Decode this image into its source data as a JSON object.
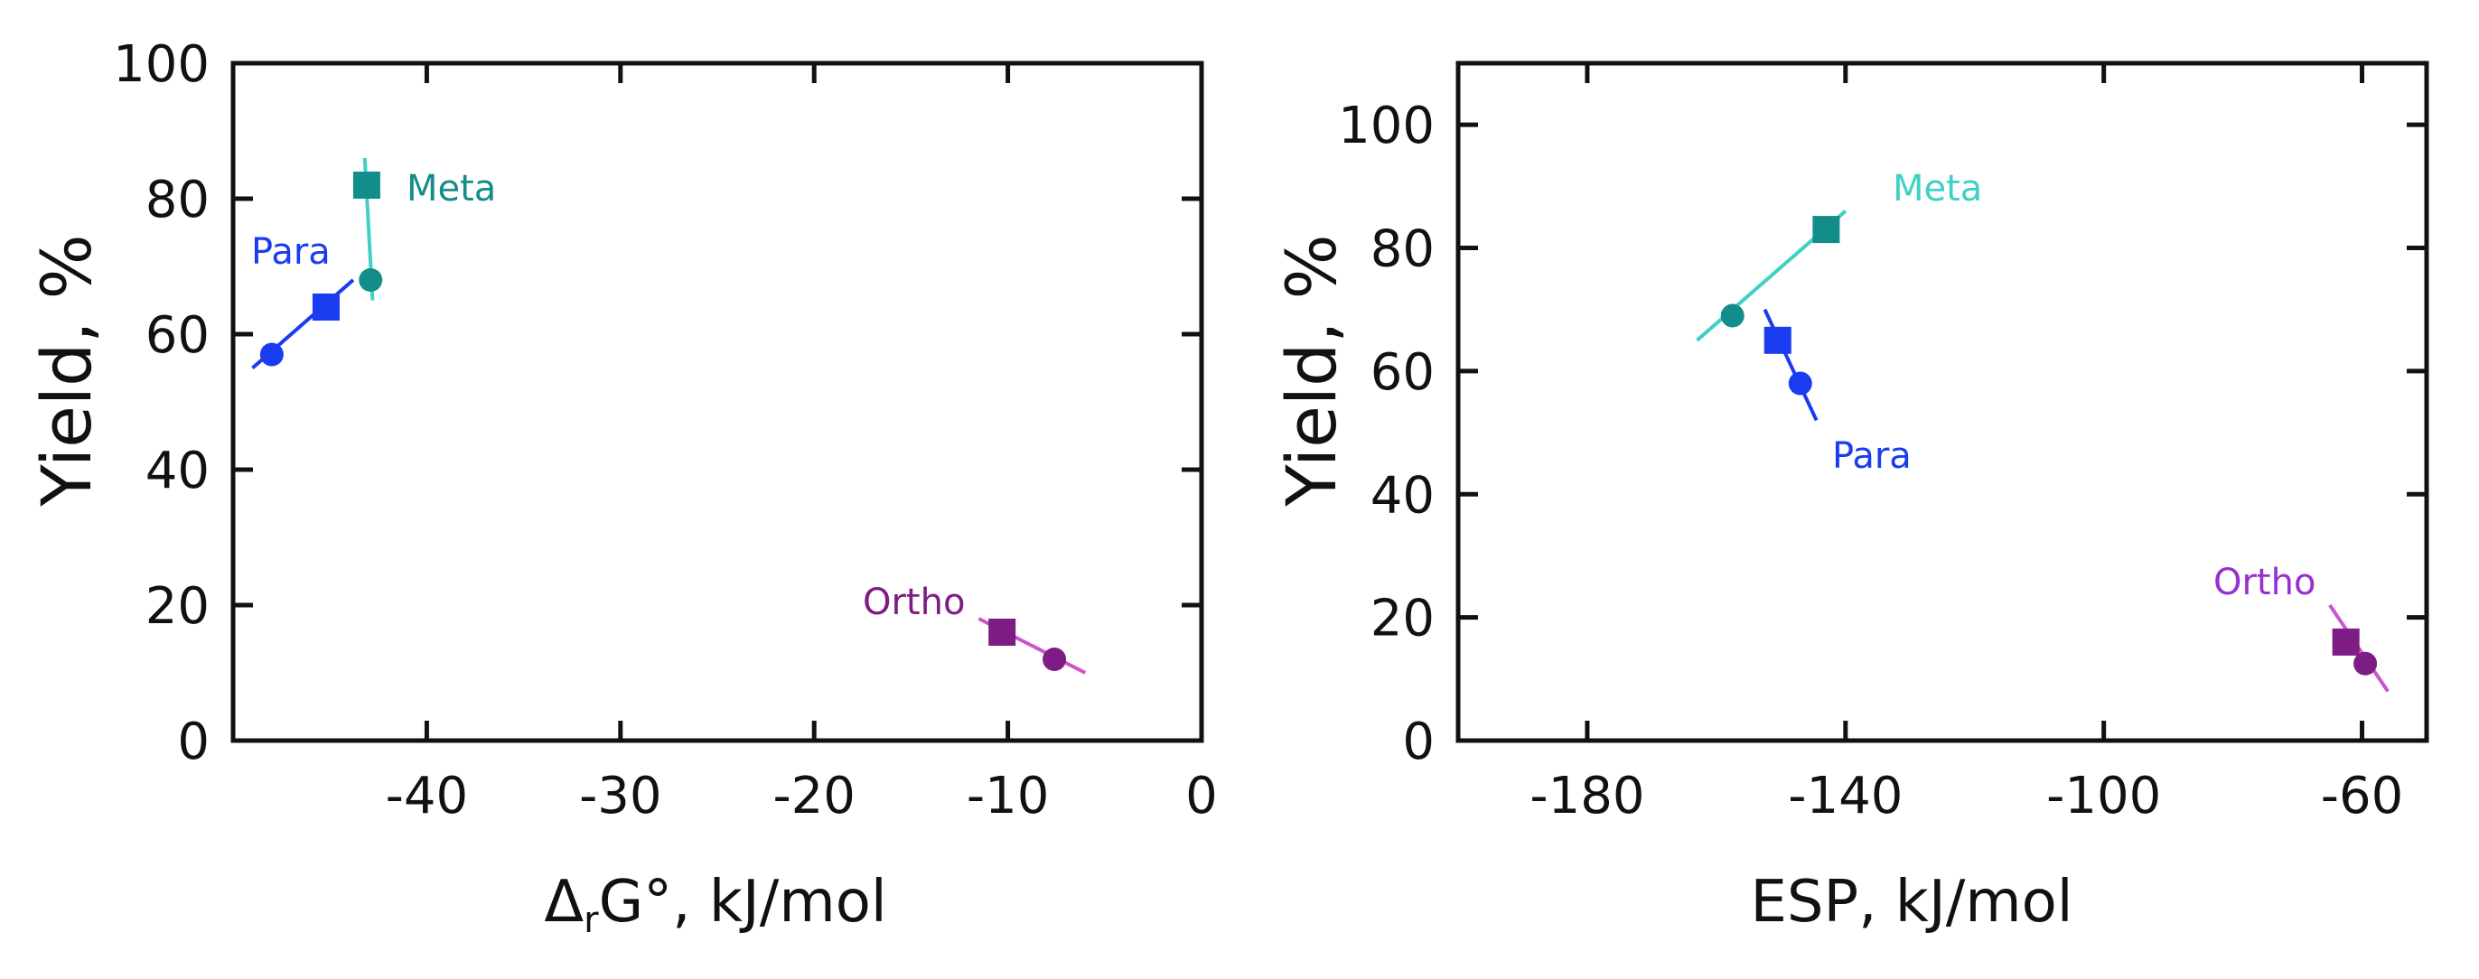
{
  "chart_data": [
    {
      "type": "scatter",
      "xlabel": "ΔrG°, kJ/mol",
      "xlabel_main": "Δ",
      "xlabel_sub": "r",
      "xlabel_rest": "G°, kJ/mol",
      "ylabel": "Yield, %",
      "xlim": [
        -50,
        0
      ],
      "ylim": [
        0,
        100
      ],
      "xticks": [
        -40,
        -30,
        -20,
        -10,
        0
      ],
      "xtick_labels": [
        "-40",
        "-30",
        "-20",
        "-10",
        "0"
      ],
      "yticks": [
        0,
        20,
        40,
        60,
        80,
        100
      ],
      "ytick_labels": [
        "0",
        "20",
        "40",
        "60",
        "80",
        "100"
      ],
      "series": [
        {
          "name": "Para",
          "color": "#1a3cf0",
          "points": [
            {
              "x": -48,
              "y": 57,
              "marker": "circle"
            },
            {
              "x": -45.2,
              "y": 64,
              "marker": "square"
            }
          ],
          "fit_line": [
            [
              -49,
              55
            ],
            [
              -43.8,
              68
            ]
          ]
        },
        {
          "name": "Meta",
          "color": "#138d89",
          "line_color": "#3fd0c4",
          "points": [
            {
              "x": -43.1,
              "y": 82,
              "marker": "square"
            },
            {
              "x": -42.9,
              "y": 68,
              "marker": "circle"
            }
          ],
          "fit_line": [
            [
              -43.2,
              86
            ],
            [
              -42.8,
              65
            ]
          ]
        },
        {
          "name": "Ortho",
          "color": "#7d1c84",
          "line_color": "#cc55cc",
          "points": [
            {
              "x": -10.3,
              "y": 16,
              "marker": "square"
            },
            {
              "x": -7.6,
              "y": 12,
              "marker": "circle"
            }
          ],
          "fit_line": [
            [
              -11.5,
              18
            ],
            [
              -6,
              10
            ]
          ]
        }
      ]
    },
    {
      "type": "scatter",
      "xlabel": "ESP, kJ/mol",
      "ylabel": "Yield, %",
      "xlim": [
        -200,
        -50
      ],
      "ylim": [
        0,
        110
      ],
      "xticks": [
        -180,
        -140,
        -100,
        -60
      ],
      "xtick_labels": [
        "-180",
        "-140",
        "-100",
        "-60"
      ],
      "yticks": [
        0,
        20,
        40,
        60,
        80,
        100
      ],
      "ytick_labels": [
        "0",
        "20",
        "40",
        "60",
        "80",
        "100"
      ],
      "series": [
        {
          "name": "Meta",
          "color": "#138d89",
          "line_color": "#3fd0c4",
          "points": [
            {
              "x": -157.5,
              "y": 69,
              "marker": "circle"
            },
            {
              "x": -143,
              "y": 83,
              "marker": "square"
            }
          ],
          "fit_line": [
            [
              -163,
              65
            ],
            [
              -140,
              86
            ]
          ]
        },
        {
          "name": "Para",
          "color": "#1a3cf0",
          "points": [
            {
              "x": -150.5,
              "y": 65,
              "marker": "square"
            },
            {
              "x": -147,
              "y": 58,
              "marker": "circle"
            }
          ],
          "fit_line": [
            [
              -152.5,
              70
            ],
            [
              -144.5,
              52
            ]
          ]
        },
        {
          "name": "Ortho",
          "color": "#7d1c84",
          "line_color": "#cc55cc",
          "points": [
            {
              "x": -62.5,
              "y": 16,
              "marker": "square"
            },
            {
              "x": -59.5,
              "y": 12.5,
              "marker": "circle"
            }
          ],
          "fit_line": [
            [
              -65,
              22
            ],
            [
              -56,
              8
            ]
          ]
        }
      ]
    }
  ]
}
